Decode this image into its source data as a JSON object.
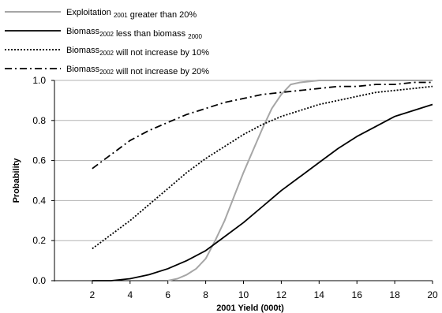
{
  "chart_data": {
    "type": "line",
    "xlabel": "2001 Yield (000t)",
    "ylabel": "Probability",
    "xlim": [
      0,
      20
    ],
    "ylim": [
      0,
      1.0
    ],
    "x_ticks": [
      2,
      4,
      6,
      8,
      10,
      12,
      14,
      16,
      18,
      20
    ],
    "y_ticks": [
      0.0,
      0.2,
      0.4,
      0.6,
      0.8,
      1.0
    ],
    "y_tick_labels": [
      "0.0",
      "0.2",
      "0.4",
      "0.6",
      "0.8",
      "1.0"
    ],
    "grid": "horizontal",
    "legend_position": "top-left",
    "series": [
      {
        "name": "Exploitation 2001 greater than 20%",
        "legend_parts": [
          {
            "text": "Exploitation ",
            "sub": false
          },
          {
            "text": "2001",
            "sub": true
          },
          {
            "text": " greater than 20%",
            "sub": false
          }
        ],
        "color": "#a6a6a6",
        "style": "solid",
        "points": [
          [
            6.0,
            0.0
          ],
          [
            6.5,
            0.01
          ],
          [
            7.0,
            0.03
          ],
          [
            7.5,
            0.06
          ],
          [
            8.0,
            0.11
          ],
          [
            8.5,
            0.2
          ],
          [
            9.0,
            0.3
          ],
          [
            9.5,
            0.42
          ],
          [
            10.0,
            0.54
          ],
          [
            10.5,
            0.65
          ],
          [
            11.0,
            0.76
          ],
          [
            11.5,
            0.86
          ],
          [
            12.0,
            0.93
          ],
          [
            12.5,
            0.98
          ],
          [
            13.0,
            0.99
          ],
          [
            14.0,
            1.0
          ],
          [
            16.0,
            1.0
          ],
          [
            18.0,
            1.0
          ],
          [
            20.0,
            1.0
          ]
        ]
      },
      {
        "name": "Biomass 2002 less than biomass 2000",
        "legend_parts": [
          {
            "text": "Biomass",
            "sub": false
          },
          {
            "text": "2002",
            "sub": true
          },
          {
            "text": " less than biomass ",
            "sub": false
          },
          {
            "text": "2000",
            "sub": true
          }
        ],
        "color": "#000000",
        "style": "solid",
        "points": [
          [
            2.0,
            0.0
          ],
          [
            3.0,
            0.0
          ],
          [
            4.0,
            0.01
          ],
          [
            5.0,
            0.03
          ],
          [
            6.0,
            0.06
          ],
          [
            7.0,
            0.1
          ],
          [
            8.0,
            0.15
          ],
          [
            9.0,
            0.22
          ],
          [
            10.0,
            0.29
          ],
          [
            11.0,
            0.37
          ],
          [
            12.0,
            0.45
          ],
          [
            13.0,
            0.52
          ],
          [
            14.0,
            0.59
          ],
          [
            15.0,
            0.66
          ],
          [
            16.0,
            0.72
          ],
          [
            17.0,
            0.77
          ],
          [
            18.0,
            0.82
          ],
          [
            19.0,
            0.85
          ],
          [
            20.0,
            0.88
          ]
        ]
      },
      {
        "name": "Biomass 2002 will not increase by 10%",
        "legend_parts": [
          {
            "text": "Biomass",
            "sub": false
          },
          {
            "text": "2002",
            "sub": true
          },
          {
            "text": " will not increase by 10%",
            "sub": false
          }
        ],
        "color": "#000000",
        "style": "dotted",
        "points": [
          [
            2.0,
            0.16
          ],
          [
            3.0,
            0.23
          ],
          [
            4.0,
            0.3
          ],
          [
            5.0,
            0.38
          ],
          [
            6.0,
            0.46
          ],
          [
            7.0,
            0.54
          ],
          [
            8.0,
            0.61
          ],
          [
            9.0,
            0.67
          ],
          [
            10.0,
            0.73
          ],
          [
            11.0,
            0.78
          ],
          [
            12.0,
            0.82
          ],
          [
            13.0,
            0.85
          ],
          [
            14.0,
            0.88
          ],
          [
            15.0,
            0.9
          ],
          [
            16.0,
            0.92
          ],
          [
            17.0,
            0.94
          ],
          [
            18.0,
            0.95
          ],
          [
            19.0,
            0.96
          ],
          [
            20.0,
            0.97
          ]
        ]
      },
      {
        "name": "Biomass 2002 will not increase by 20%",
        "legend_parts": [
          {
            "text": "Biomass",
            "sub": false
          },
          {
            "text": "2002",
            "sub": true
          },
          {
            "text": " will not increase by 20%",
            "sub": false
          }
        ],
        "color": "#000000",
        "style": "dashdot",
        "points": [
          [
            2.0,
            0.56
          ],
          [
            3.0,
            0.63
          ],
          [
            4.0,
            0.7
          ],
          [
            5.0,
            0.75
          ],
          [
            6.0,
            0.79
          ],
          [
            7.0,
            0.83
          ],
          [
            8.0,
            0.86
          ],
          [
            9.0,
            0.89
          ],
          [
            10.0,
            0.91
          ],
          [
            11.0,
            0.93
          ],
          [
            12.0,
            0.94
          ],
          [
            13.0,
            0.95
          ],
          [
            14.0,
            0.96
          ],
          [
            15.0,
            0.97
          ],
          [
            16.0,
            0.97
          ],
          [
            17.0,
            0.98
          ],
          [
            18.0,
            0.98
          ],
          [
            19.0,
            0.99
          ],
          [
            20.0,
            0.99
          ]
        ]
      }
    ]
  }
}
